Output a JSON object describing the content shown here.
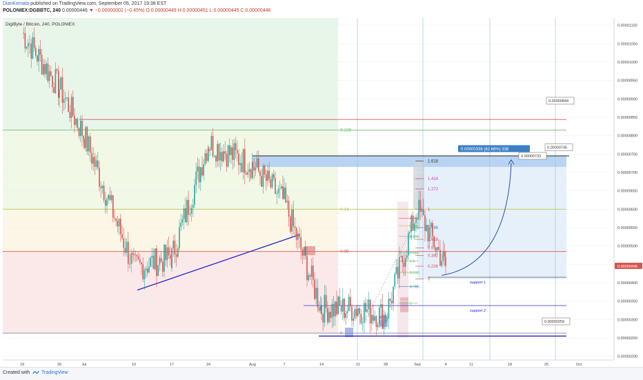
{
  "header": {
    "author": "DianKemala",
    "published_text": "published on TradingView.com, September 05, 2017 19:38 EST",
    "symbol": "POLONIEX:DGBBTC, 240",
    "last_price": "0.00000446",
    "change_arrow": "▼",
    "change": "−0.00000002 (−0.45%)",
    "ohlc": "O:0.00000449 H:0.00000451 L:0.00000445 C:0.00000446"
  },
  "legend": {
    "text": "DigiByte / Bitcoin, 240, POLONIEX"
  },
  "footer": {
    "created_with": "Created with",
    "brand": "TradingView"
  },
  "colors": {
    "up": "#26a69a",
    "down": "#d9534f",
    "blue_line": "#2222cc",
    "fib_red": "#d9534f",
    "fib_green": "#6dbf6d",
    "fib_orange": "#e09a3b",
    "fib_violet": "#c63ab3",
    "zone_green": "#e8f6ea",
    "zone_red": "#fbe9e9",
    "zone_blue": "#e6f0fb",
    "price_tag": "#d9534f",
    "target_tag": "#3d7fc4"
  },
  "chart_data": {
    "type": "candlestick",
    "title": "DigiByte / Bitcoin, 240, POLONIEX",
    "ylim": [
      1.9e-06,
      1.12e-05
    ],
    "yticks": [
      "0.00000200",
      "0.00000250",
      "0.00000300",
      "0.00000350",
      "0.00000400",
      "0.00000450",
      "0.00000500",
      "0.00000550",
      "0.00000600",
      "0.00000650",
      "0.00000700",
      "0.00000750",
      "0.00000800",
      "0.00000850",
      "0.00000900",
      "0.00000950",
      "0.00001000",
      "0.00001050",
      "0.00001100"
    ],
    "xticks": [
      "19",
      "26",
      "Jul",
      "10",
      "17",
      "24",
      "Aug",
      "7",
      "14",
      "21",
      "28",
      "Sep",
      "4",
      "11",
      "18",
      "25",
      "Oct"
    ],
    "last_price_label": "0.00000446",
    "anchor_closes": [
      [
        "19",
        1.08e-05
      ],
      [
        "26",
        9.3e-06
      ],
      [
        "Jul",
        8e-06
      ],
      [
        "10",
        4.4e-06
      ],
      [
        "17",
        4.7e-06
      ],
      [
        "24",
        7.8e-06
      ],
      [
        "Aug",
        7.2e-06
      ],
      [
        "7",
        6.2e-06
      ],
      [
        "14",
        3.3e-06
      ],
      [
        "21",
        3.3e-06
      ],
      [
        "28",
        3.1e-06
      ],
      [
        "Sep",
        6e-06
      ],
      [
        "4",
        4.46e-06
      ]
    ],
    "fib_levels_left": [
      {
        "label": "0.236",
        "price": 8.15e-06
      },
      {
        "label": "0.14",
        "price": 6e-06
      },
      {
        "label": "0.09",
        "price": 4.85e-06
      },
      {
        "label": "0",
        "price": 2.63e-06
      }
    ],
    "fib_levels_right": [
      {
        "label": "1.618",
        "price": 7.31e-06
      },
      {
        "label": "1.414",
        "price": 6.83e-06
      },
      {
        "label": "1.272",
        "price": 6.55e-06
      },
      {
        "label": "1",
        "price": 6e-06
      },
      {
        "label": "0.786",
        "price": 5.5e-06
      },
      {
        "label": "0.618",
        "price": 5.18e-06
      },
      {
        "label": "0.5",
        "price": 4.95e-06
      },
      {
        "label": "0.382",
        "price": 4.74e-06
      },
      {
        "label": "0.236",
        "price": 4.45e-06
      },
      {
        "label": "0",
        "price": 4.1e-06
      }
    ],
    "fib_inner": [
      {
        "label": "0.09",
        "price": 5.75e-06
      },
      {
        "label": "0.14",
        "price": 5.55e-06
      },
      {
        "label": "0.236",
        "price": 5.26e-06
      },
      {
        "label": "0.382",
        "price": 4.82e-06
      },
      {
        "label": "0.5",
        "price": 4.59e-06
      },
      {
        "label": "0.618",
        "price": 4.28e-06
      },
      {
        "label": "0.786",
        "price": 3.9e-06
      },
      {
        "label": "1",
        "price": 3.45e-06
      }
    ],
    "support_lines": [
      {
        "label": "support 1",
        "price": 4.15e-06
      },
      {
        "label": "support 2",
        "price": 3.38e-06
      }
    ],
    "measure_label": "0.00000338 (82.68%) 338",
    "callouts": [
      "0.00000844",
      "0.00000745",
      "0.00000733",
      "0.00000259"
    ]
  }
}
